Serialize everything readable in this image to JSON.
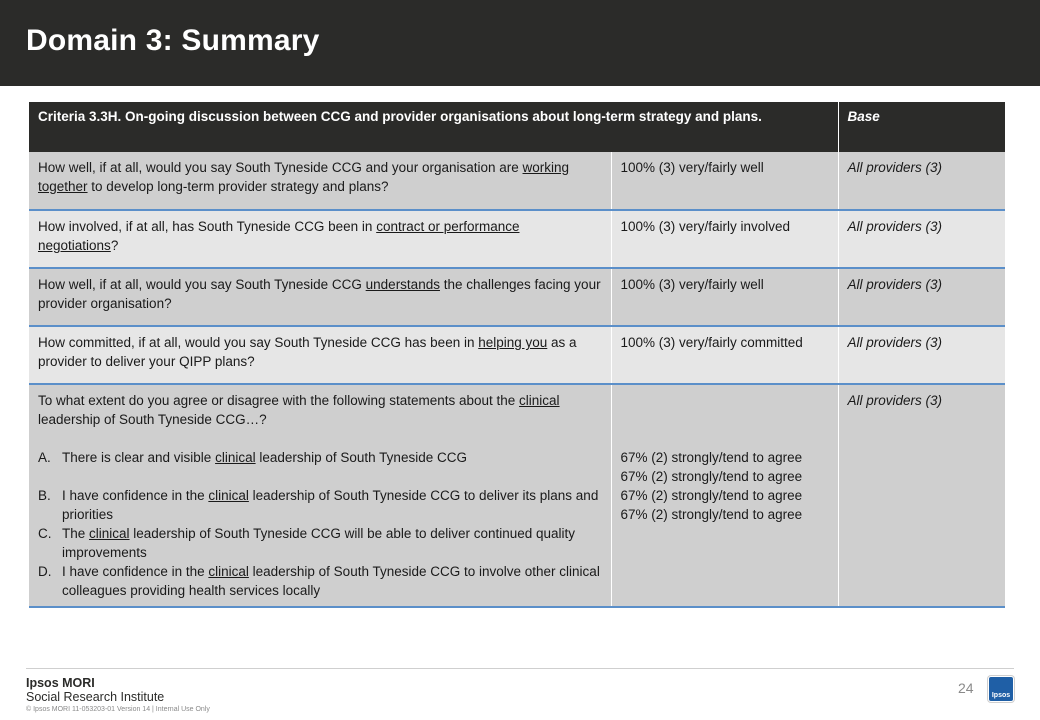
{
  "title": "Domain 3: Summary",
  "table": {
    "header": {
      "criteria": "Criteria 3.3H. On-going discussion between CCG and provider organisations about long-term strategy and plans.",
      "base": "Base"
    },
    "rows": [
      {
        "q_pre": "How well, if at all, would you say South Tyneside CCG and your organisation are ",
        "q_u": "working together",
        "q_post": " to develop long-term provider strategy and plans?",
        "result": "100% (3) very/fairly well",
        "base": "All providers (3)"
      },
      {
        "q_pre": "How involved, if at all, has South Tyneside CCG been in ",
        "q_u": "contract or performance negotiations",
        "q_post": "?",
        "result": "100% (3) very/fairly involved",
        "base": "All providers (3)"
      },
      {
        "q_pre": "How well, if at all, would you say South Tyneside CCG ",
        "q_u": "understands",
        "q_post": " the challenges facing your provider organisation?",
        "result": "100% (3) very/fairly well",
        "base": "All providers (3)"
      },
      {
        "q_pre": "How committed, if at all, would you say South Tyneside CCG has been in ",
        "q_u": "helping you",
        "q_post": " as a provider to deliver your QIPP plans?",
        "result": "100% (3) very/fairly committed",
        "base": "All providers (3)"
      }
    ],
    "clinical": {
      "intro_pre": "To what extent do you agree or disagree with the following statements about the ",
      "intro_u": "clinical",
      "intro_post": " leadership of South Tyneside CCG…?",
      "base": "All providers (3)",
      "statements": [
        {
          "letter": "A.",
          "pre": "There is clear and visible ",
          "u": "clinical",
          "post": " leadership of South Tyneside CCG",
          "result": "67% (2) strongly/tend to agree"
        },
        {
          "letter": "B.",
          "pre": "I have confidence in the ",
          "u": "clinical",
          "post": " leadership of South Tyneside CCG to deliver its plans and priorities",
          "result": "67% (2) strongly/tend to agree"
        },
        {
          "letter": "C.",
          "pre": "The ",
          "u": "clinical",
          "post": " leadership of South Tyneside CCG will be able to deliver continued quality improvements",
          "result": "67% (2) strongly/tend to agree"
        },
        {
          "letter": "D.",
          "pre": "I have confidence in the ",
          "u": "clinical",
          "post": " leadership of South Tyneside CCG to involve other clinical colleagues providing health services locally",
          "result": "67% (2) strongly/tend to agree"
        }
      ]
    }
  },
  "footer": {
    "brand_line1": "Ipsos MORI",
    "brand_line2": "Social Research Institute",
    "copyright": "© Ipsos MORI    11-053203-01  Version 14 | Internal Use Only",
    "page_number": "24",
    "logo_text": "Ipsos"
  }
}
